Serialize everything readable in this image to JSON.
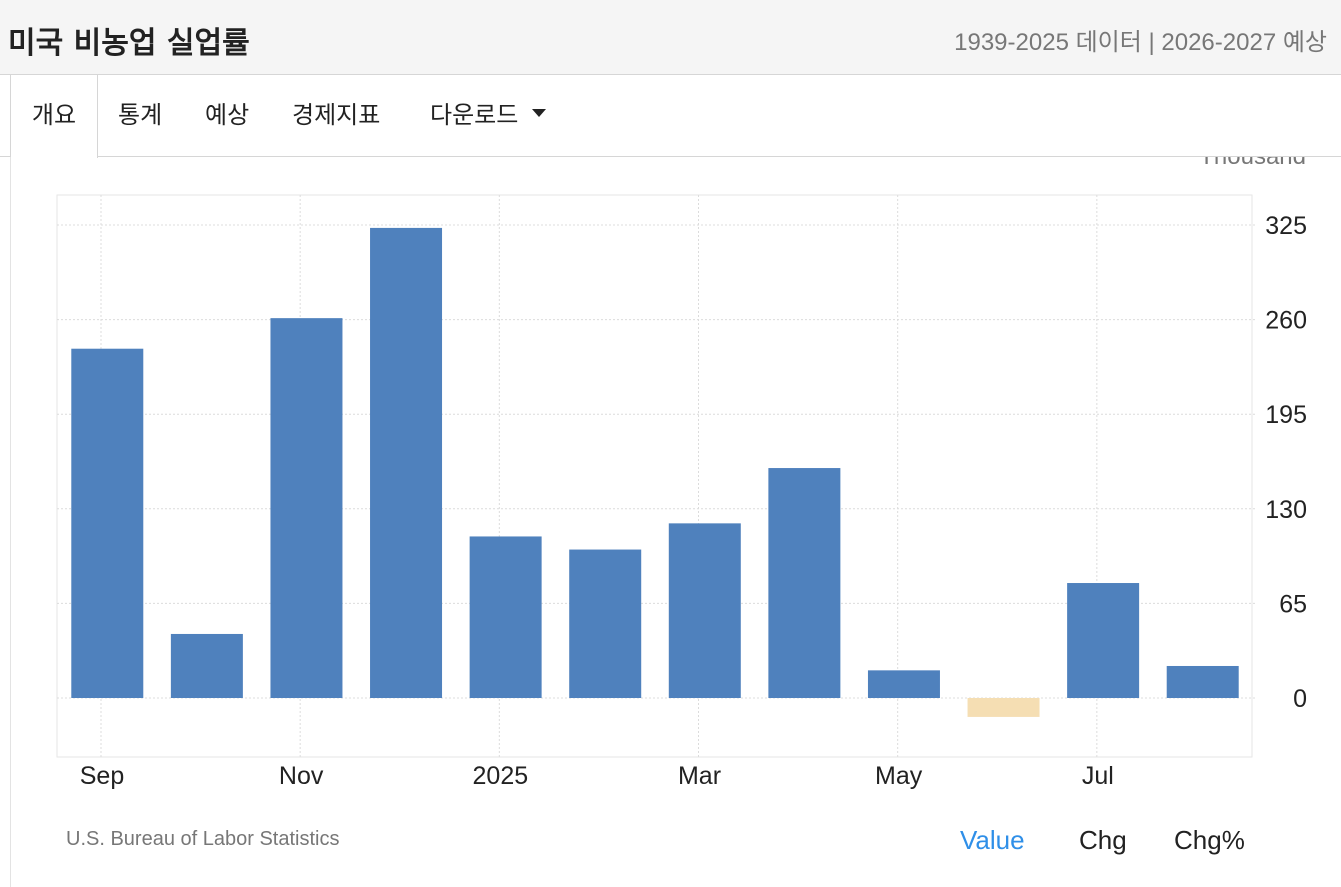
{
  "header": {
    "title": "미국 비농업 실업률",
    "meta": "1939-2025 데이터 | 2026-2027 예상"
  },
  "tabs": [
    {
      "label": "개요"
    },
    {
      "label": "통계"
    },
    {
      "label": "예상"
    },
    {
      "label": "경제지표"
    },
    {
      "label": "다운로드"
    }
  ],
  "chart_data": {
    "type": "bar",
    "unit": "Thousand",
    "categories": [
      "Sep 2024",
      "Oct 2024",
      "Nov 2024",
      "Dec 2024",
      "Jan 2025",
      "Feb 2025",
      "Mar 2025",
      "Apr 2025",
      "May 2025",
      "Jun 2025",
      "Jul 2025",
      "Aug 2025"
    ],
    "values": [
      240,
      44,
      261,
      323,
      111,
      102,
      120,
      158,
      19,
      -13,
      79,
      22
    ],
    "x_tick_labels": [
      "Sep",
      "Nov",
      "2025",
      "Mar",
      "May",
      "Jul"
    ],
    "y_ticks": [
      0,
      65,
      130,
      195,
      260,
      325
    ],
    "ylim": [
      -40,
      345
    ],
    "grid": true,
    "colors": {
      "positive": "#4f81bd",
      "negative": "#f5deb3"
    }
  },
  "footer": {
    "source": "U.S. Bureau of Labor Statistics",
    "modes": {
      "value": "Value",
      "chg": "Chg",
      "chgpct": "Chg%"
    },
    "active_color": "#2f8fe8"
  }
}
